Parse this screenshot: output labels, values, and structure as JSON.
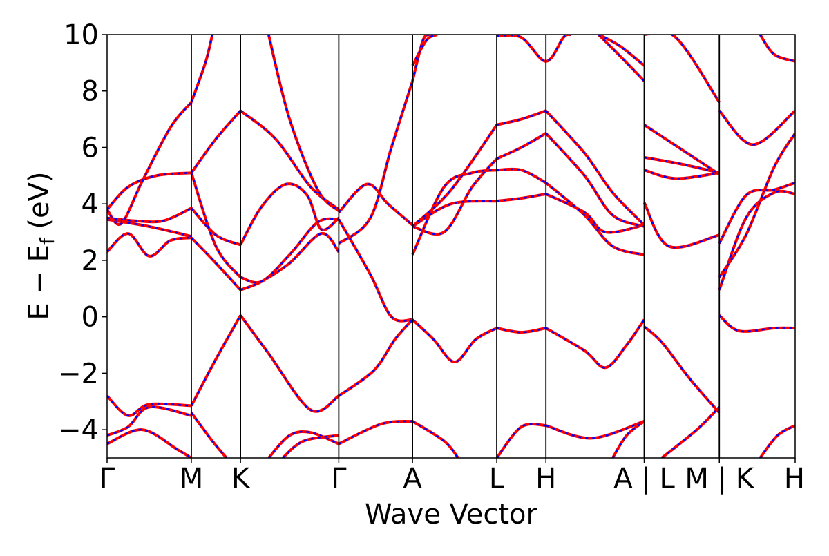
{
  "chart_data": {
    "type": "line",
    "title": "",
    "xlabel": "Wave Vector",
    "ylabel": {
      "main": "E − E",
      "sub": "f",
      "unit": " (eV)"
    },
    "ylim": [
      -5,
      10
    ],
    "yticks": [
      -4,
      -2,
      0,
      2,
      4,
      6,
      8,
      10
    ],
    "ytick_labels": [
      "−4",
      "−2",
      "0",
      "2",
      "4",
      "6",
      "8",
      "10"
    ],
    "xlim": [
      0,
      9.8
    ],
    "kpath_ticks": [
      {
        "x": 0.0,
        "label": "Γ"
      },
      {
        "x": 1.2,
        "label": "M"
      },
      {
        "x": 1.9,
        "label": "K"
      },
      {
        "x": 3.3,
        "label": "Γ"
      },
      {
        "x": 4.35,
        "label": "A"
      },
      {
        "x": 5.55,
        "label": "L"
      },
      {
        "x": 6.25,
        "label": "H"
      },
      {
        "x": 7.65,
        "label": "A | L"
      },
      {
        "x": 8.72,
        "label": "M | K"
      },
      {
        "x": 9.8,
        "label": "H"
      }
    ],
    "grid": false,
    "legend": "none",
    "colors": {
      "dashed_series": "#0000ff",
      "solid_series": "#ff0000",
      "kpath_lines": "#000000"
    },
    "series": [
      {
        "bands": [
          [
            [
              0,
              2.3
            ],
            [
              0.3,
              2.95
            ],
            [
              0.6,
              2.15
            ],
            [
              0.9,
              2.7
            ],
            [
              1.2,
              2.8
            ]
          ],
          [
            [
              1.2,
              2.8
            ],
            [
              1.55,
              1.9
            ],
            [
              1.9,
              0.95
            ]
          ],
          [
            [
              1.9,
              0.95
            ],
            [
              2.2,
              1.25
            ],
            [
              2.6,
              1.9
            ],
            [
              3.05,
              2.95
            ],
            [
              3.3,
              2.3
            ]
          ],
          [
            [
              0,
              3.45
            ],
            [
              0.6,
              3.2
            ],
            [
              1.2,
              2.85
            ]
          ],
          [
            [
              1.2,
              3.85
            ],
            [
              1.55,
              2.9
            ],
            [
              1.9,
              2.55
            ]
          ],
          [
            [
              1.9,
              2.55
            ],
            [
              2.2,
              3.9
            ],
            [
              2.55,
              4.7
            ],
            [
              2.85,
              4.3
            ],
            [
              3.05,
              3.1
            ],
            [
              3.3,
              3.5
            ]
          ],
          [
            [
              0,
              3.5
            ],
            [
              0.4,
              3.4
            ],
            [
              0.8,
              3.4
            ],
            [
              1.2,
              3.85
            ]
          ],
          [
            [
              1.2,
              5.1
            ],
            [
              1.55,
              6.3
            ],
            [
              1.9,
              7.3
            ]
          ],
          [
            [
              1.9,
              7.3
            ],
            [
              2.4,
              6.3
            ],
            [
              2.9,
              4.6
            ],
            [
              3.3,
              3.8
            ]
          ],
          [
            [
              0,
              3.8
            ],
            [
              0.3,
              4.6
            ],
            [
              0.7,
              5.0
            ],
            [
              1.2,
              5.1
            ]
          ],
          [
            [
              1.2,
              5.1
            ],
            [
              1.55,
              2.5
            ],
            [
              1.9,
              1.4
            ]
          ],
          [
            [
              1.9,
              1.4
            ],
            [
              2.2,
              1.25
            ],
            [
              2.6,
              2.2
            ],
            [
              3.0,
              3.35
            ],
            [
              3.3,
              3.45
            ]
          ],
          [
            [
              0,
              3.8
            ],
            [
              0.2,
              3.3
            ],
            [
              0.5,
              4.8
            ],
            [
              0.9,
              6.7
            ],
            [
              1.2,
              7.6
            ]
          ],
          [
            [
              1.2,
              7.6
            ],
            [
              1.4,
              9.0
            ],
            [
              1.5,
              10.0
            ]
          ],
          [
            [
              2.3,
              10.0
            ],
            [
              2.6,
              7.0
            ],
            [
              3.0,
              4.5
            ],
            [
              3.3,
              3.75
            ]
          ],
          [
            [
              3.3,
              3.7
            ],
            [
              3.7,
              4.7
            ],
            [
              4.0,
              4.0
            ],
            [
              4.35,
              3.25
            ]
          ],
          [
            [
              3.3,
              3.45
            ],
            [
              3.75,
              1.5
            ],
            [
              4.05,
              0.0
            ],
            [
              4.35,
              -0.1
            ]
          ],
          [
            [
              3.3,
              2.6
            ],
            [
              3.75,
              3.5
            ],
            [
              4.05,
              6.0
            ],
            [
              4.35,
              8.35
            ]
          ],
          [
            [
              4.35,
              8.35
            ],
            [
              4.5,
              9.8
            ],
            [
              4.6,
              10.0
            ]
          ],
          [
            [
              4.35,
              -0.1
            ],
            [
              4.65,
              -0.8
            ],
            [
              4.95,
              -1.6
            ],
            [
              5.25,
              -0.8
            ],
            [
              5.55,
              -0.4
            ]
          ],
          [
            [
              4.35,
              2.2
            ],
            [
              4.8,
              4.6
            ],
            [
              5.2,
              5.1
            ],
            [
              5.55,
              5.2
            ]
          ],
          [
            [
              4.35,
              3.2
            ],
            [
              4.8,
              3.0
            ],
            [
              5.2,
              4.6
            ],
            [
              5.55,
              5.6
            ]
          ],
          [
            [
              4.35,
              3.2
            ],
            [
              4.9,
              4.0
            ],
            [
              5.55,
              4.1
            ]
          ],
          [
            [
              4.35,
              3.2
            ],
            [
              4.9,
              4.5
            ],
            [
              5.55,
              6.8
            ]
          ],
          [
            [
              4.35,
              8.9
            ],
            [
              4.55,
              9.8
            ],
            [
              4.7,
              10.0
            ]
          ],
          [
            [
              5.55,
              -0.4
            ],
            [
              5.9,
              -0.55
            ],
            [
              6.25,
              -0.4
            ]
          ],
          [
            [
              5.55,
              4.1
            ],
            [
              5.9,
              4.2
            ],
            [
              6.25,
              4.35
            ]
          ],
          [
            [
              5.55,
              5.2
            ],
            [
              5.9,
              5.2
            ],
            [
              6.25,
              4.75
            ]
          ],
          [
            [
              5.55,
              5.6
            ],
            [
              5.9,
              6.0
            ],
            [
              6.25,
              6.5
            ]
          ],
          [
            [
              5.55,
              6.8
            ],
            [
              5.9,
              7.0
            ],
            [
              6.25,
              7.3
            ]
          ],
          [
            [
              5.55,
              9.95
            ],
            [
              5.9,
              9.9
            ],
            [
              6.25,
              9.05
            ],
            [
              6.5,
              9.9
            ],
            [
              6.6,
              10.0
            ]
          ],
          [
            [
              6.25,
              -0.4
            ],
            [
              6.8,
              -1.2
            ],
            [
              7.1,
              -1.8
            ],
            [
              7.4,
              -1.0
            ],
            [
              7.65,
              -0.1
            ]
          ],
          [
            [
              6.25,
              4.35
            ],
            [
              6.8,
              3.7
            ],
            [
              7.1,
              3.0
            ],
            [
              7.65,
              3.25
            ]
          ],
          [
            [
              6.25,
              4.75
            ],
            [
              6.8,
              3.6
            ],
            [
              7.2,
              2.5
            ],
            [
              7.65,
              2.2
            ]
          ],
          [
            [
              6.25,
              6.5
            ],
            [
              6.8,
              5.0
            ],
            [
              7.2,
              3.6
            ],
            [
              7.65,
              3.2
            ]
          ],
          [
            [
              6.25,
              7.3
            ],
            [
              6.8,
              5.8
            ],
            [
              7.2,
              4.4
            ],
            [
              7.65,
              3.25
            ]
          ],
          [
            [
              7.0,
              10.0
            ],
            [
              7.3,
              9.6
            ],
            [
              7.65,
              8.9
            ]
          ],
          [
            [
              7.0,
              10.0
            ],
            [
              7.4,
              9.0
            ],
            [
              7.65,
              8.35
            ]
          ],
          [
            [
              7.65,
              -0.35
            ],
            [
              7.9,
              -0.9
            ],
            [
              8.3,
              -2.2
            ],
            [
              8.72,
              -3.4
            ]
          ],
          [
            [
              7.65,
              4.05
            ],
            [
              8.0,
              2.5
            ],
            [
              8.72,
              2.9
            ]
          ],
          [
            [
              7.65,
              5.2
            ],
            [
              8.1,
              4.9
            ],
            [
              8.72,
              5.1
            ]
          ],
          [
            [
              7.65,
              5.65
            ],
            [
              8.2,
              5.4
            ],
            [
              8.72,
              5.1
            ]
          ],
          [
            [
              7.65,
              6.8
            ],
            [
              8.2,
              5.9
            ],
            [
              8.72,
              5.05
            ]
          ],
          [
            [
              7.65,
              10.0
            ],
            [
              8.1,
              9.9
            ],
            [
              8.72,
              7.6
            ]
          ],
          [
            [
              8.72,
              0.05
            ],
            [
              9.0,
              -0.5
            ],
            [
              9.5,
              -0.4
            ],
            [
              9.8,
              -0.4
            ]
          ],
          [
            [
              8.72,
              0.95
            ],
            [
              9.1,
              3.5
            ],
            [
              9.5,
              4.4
            ],
            [
              9.8,
              4.35
            ]
          ],
          [
            [
              8.72,
              1.4
            ],
            [
              9.1,
              2.9
            ],
            [
              9.5,
              5.3
            ],
            [
              9.8,
              6.5
            ]
          ],
          [
            [
              8.72,
              2.6
            ],
            [
              9.1,
              4.3
            ],
            [
              9.5,
              4.5
            ],
            [
              9.8,
              4.75
            ]
          ],
          [
            [
              8.72,
              7.3
            ],
            [
              9.2,
              6.1
            ],
            [
              9.8,
              7.3
            ]
          ],
          [
            [
              9.3,
              10.0
            ],
            [
              9.5,
              9.3
            ],
            [
              9.8,
              9.05
            ]
          ],
          [
            [
              0,
              -2.8
            ],
            [
              0.3,
              -3.5
            ],
            [
              0.6,
              -3.1
            ],
            [
              1.2,
              -3.15
            ]
          ],
          [
            [
              0,
              -4.2
            ],
            [
              0.3,
              -3.9
            ],
            [
              0.6,
              -3.2
            ],
            [
              1.2,
              -3.5
            ]
          ],
          [
            [
              0,
              -4.5
            ],
            [
              0.5,
              -4.0
            ],
            [
              1.0,
              -4.7
            ],
            [
              1.2,
              -5.0
            ]
          ],
          [
            [
              1.2,
              -3.15
            ],
            [
              1.55,
              -1.5
            ],
            [
              1.9,
              0.05
            ]
          ],
          [
            [
              1.9,
              0.05
            ],
            [
              2.3,
              -1.3
            ],
            [
              2.9,
              -3.3
            ],
            [
              3.3,
              -2.8
            ]
          ],
          [
            [
              1.2,
              -3.4
            ],
            [
              1.5,
              -4.4
            ],
            [
              1.7,
              -5.0
            ]
          ],
          [
            [
              2.3,
              -5.0
            ],
            [
              2.6,
              -4.2
            ],
            [
              2.9,
              -4.1
            ],
            [
              3.3,
              -4.5
            ]
          ],
          [
            [
              2.5,
              -5.0
            ],
            [
              2.8,
              -4.4
            ],
            [
              3.3,
              -4.2
            ]
          ],
          [
            [
              3.3,
              -2.8
            ],
            [
              3.8,
              -1.9
            ],
            [
              4.1,
              -0.8
            ],
            [
              4.35,
              -0.1
            ]
          ],
          [
            [
              3.3,
              -4.5
            ],
            [
              3.9,
              -3.8
            ],
            [
              4.35,
              -3.7
            ]
          ],
          [
            [
              4.35,
              -3.7
            ],
            [
              4.8,
              -4.4
            ],
            [
              5.0,
              -5.0
            ]
          ],
          [
            [
              5.55,
              -5.0
            ],
            [
              5.9,
              -3.9
            ],
            [
              6.25,
              -3.85
            ]
          ],
          [
            [
              6.25,
              -3.85
            ],
            [
              6.9,
              -4.3
            ],
            [
              7.65,
              -3.7
            ]
          ],
          [
            [
              7.2,
              -5.0
            ],
            [
              7.4,
              -4.2
            ],
            [
              7.65,
              -3.7
            ]
          ],
          [
            [
              7.9,
              -5.0
            ],
            [
              8.4,
              -4.0
            ],
            [
              8.72,
              -3.2
            ]
          ],
          [
            [
              9.3,
              -5.0
            ],
            [
              9.55,
              -4.2
            ],
            [
              9.8,
              -3.85
            ]
          ]
        ]
      },
      {
        "same_as": 0
      }
    ]
  }
}
